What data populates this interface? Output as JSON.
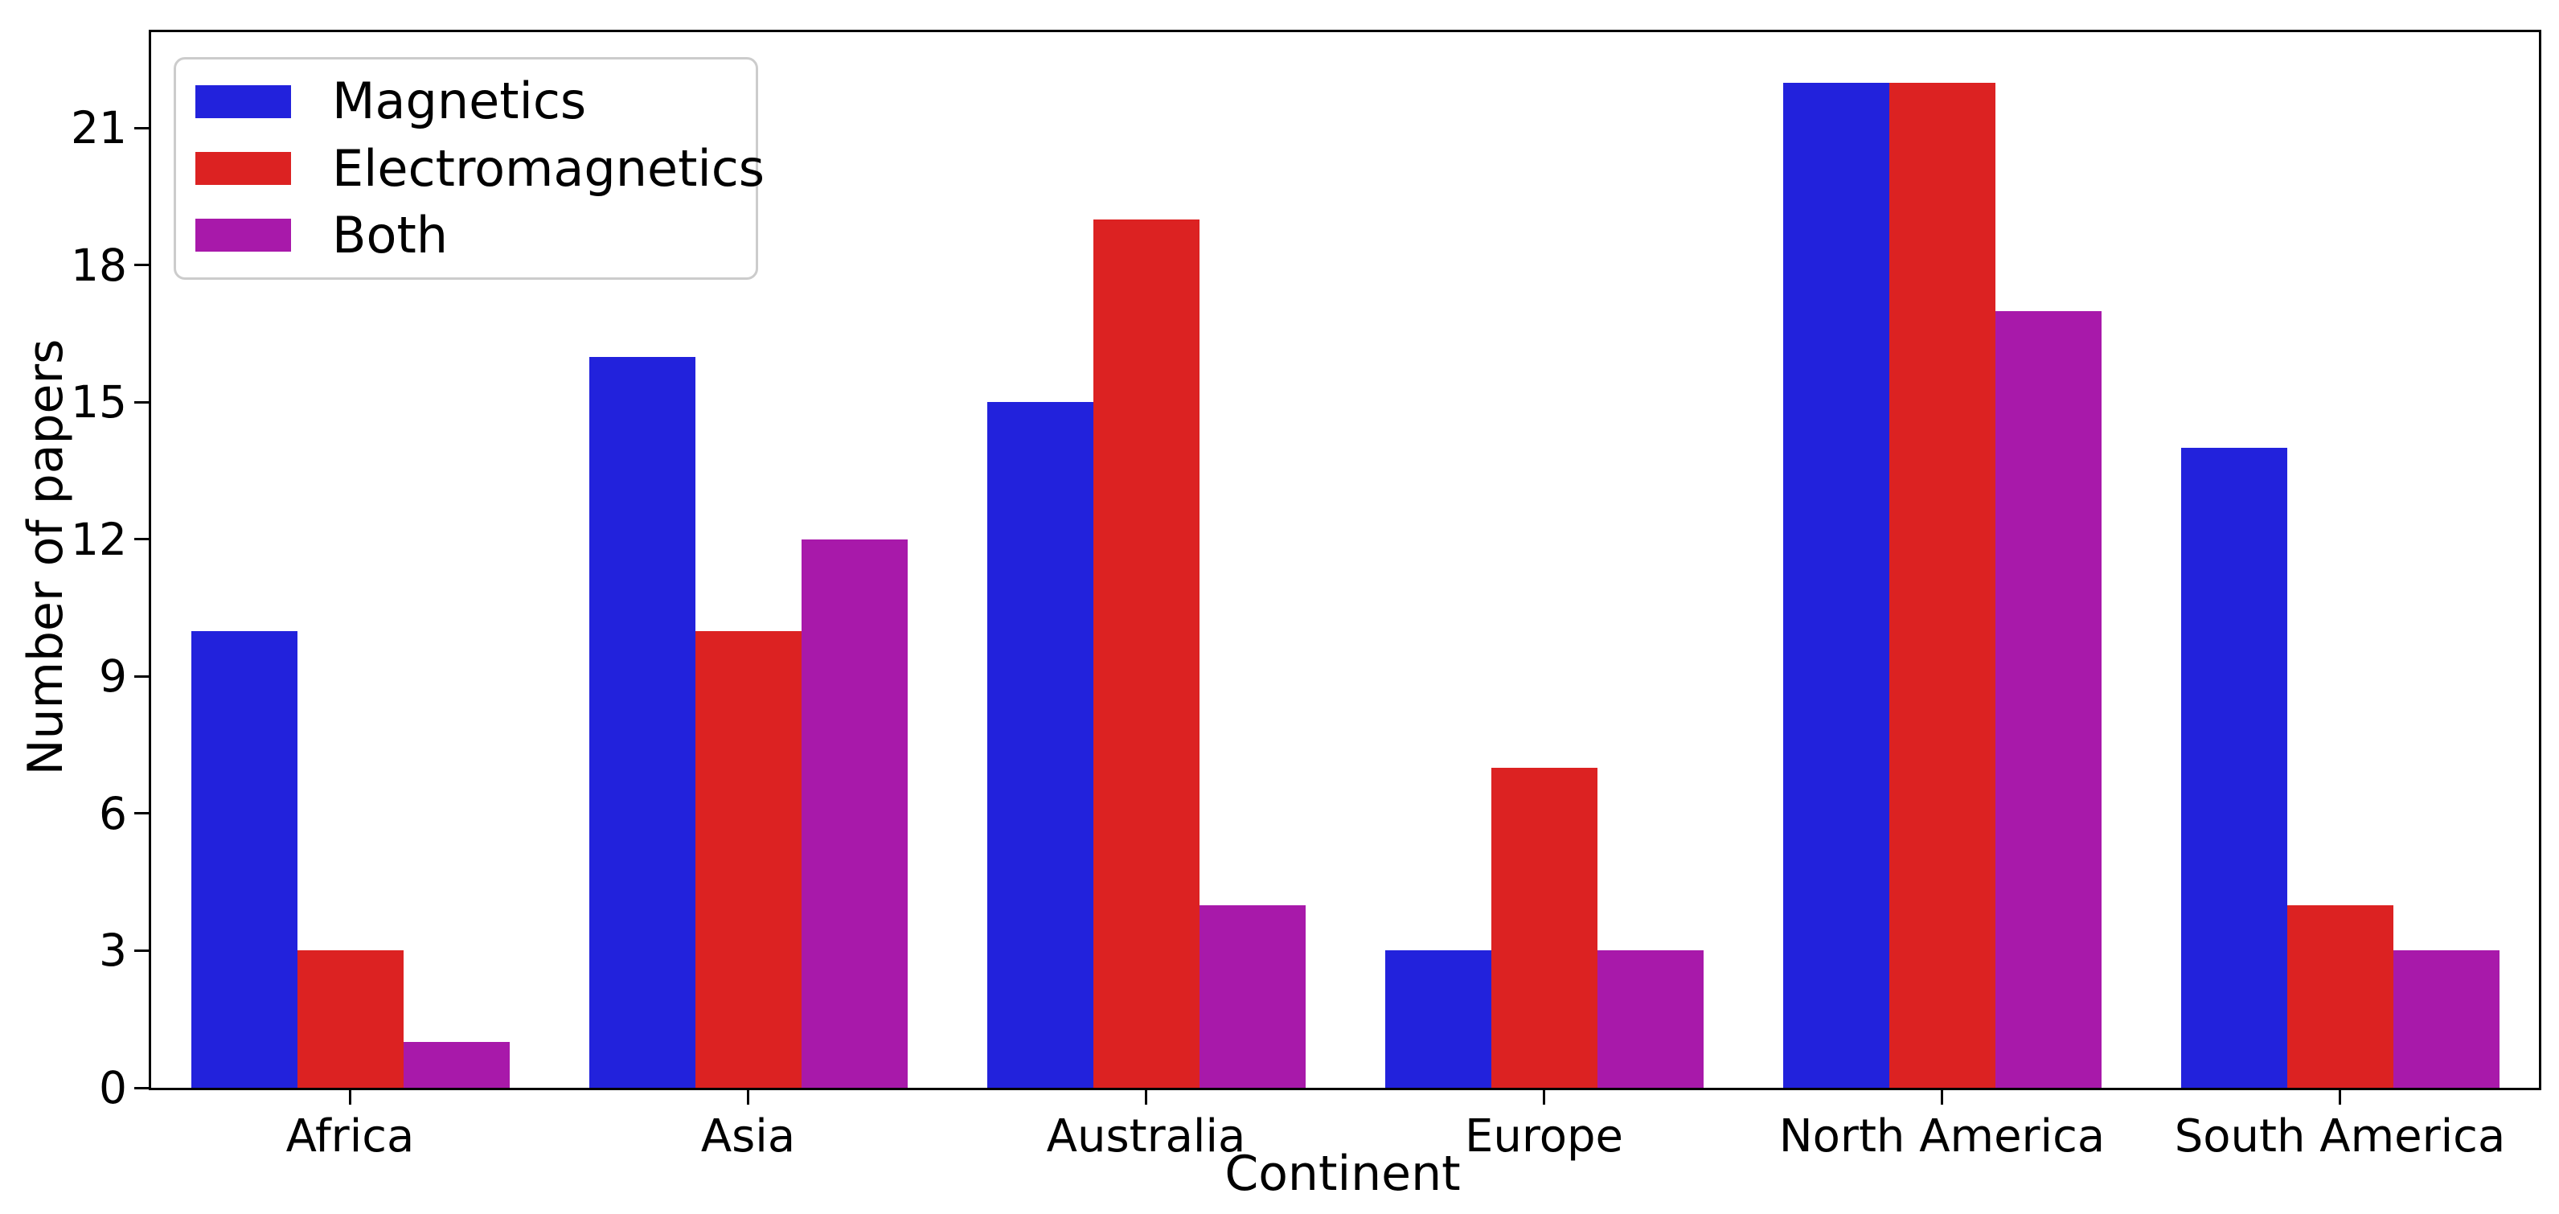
{
  "chart_data": {
    "type": "bar",
    "title": "",
    "xlabel": "Continent",
    "ylabel": "Number of papers",
    "categories": [
      "Africa",
      "Asia",
      "Australia",
      "Europe",
      "North America",
      "South America"
    ],
    "series": [
      {
        "name": "Magnetics",
        "color": "#2222dc",
        "values": [
          10,
          16,
          15,
          3,
          22,
          14
        ]
      },
      {
        "name": "Electromagnetics",
        "color": "#dc2222",
        "values": [
          3,
          10,
          19,
          7,
          22,
          4
        ]
      },
      {
        "name": "Both",
        "color": "#a819aa",
        "values": [
          1,
          12,
          4,
          3,
          17,
          3
        ]
      }
    ],
    "yticks": [
      0,
      3,
      6,
      9,
      12,
      15,
      18,
      21
    ],
    "ylim": [
      0,
      23.1
    ],
    "grid": false,
    "legend_position": "upper left",
    "background_color": "#ffffff",
    "spine_color": "#000000",
    "legend_border_color": "#cccccc"
  }
}
